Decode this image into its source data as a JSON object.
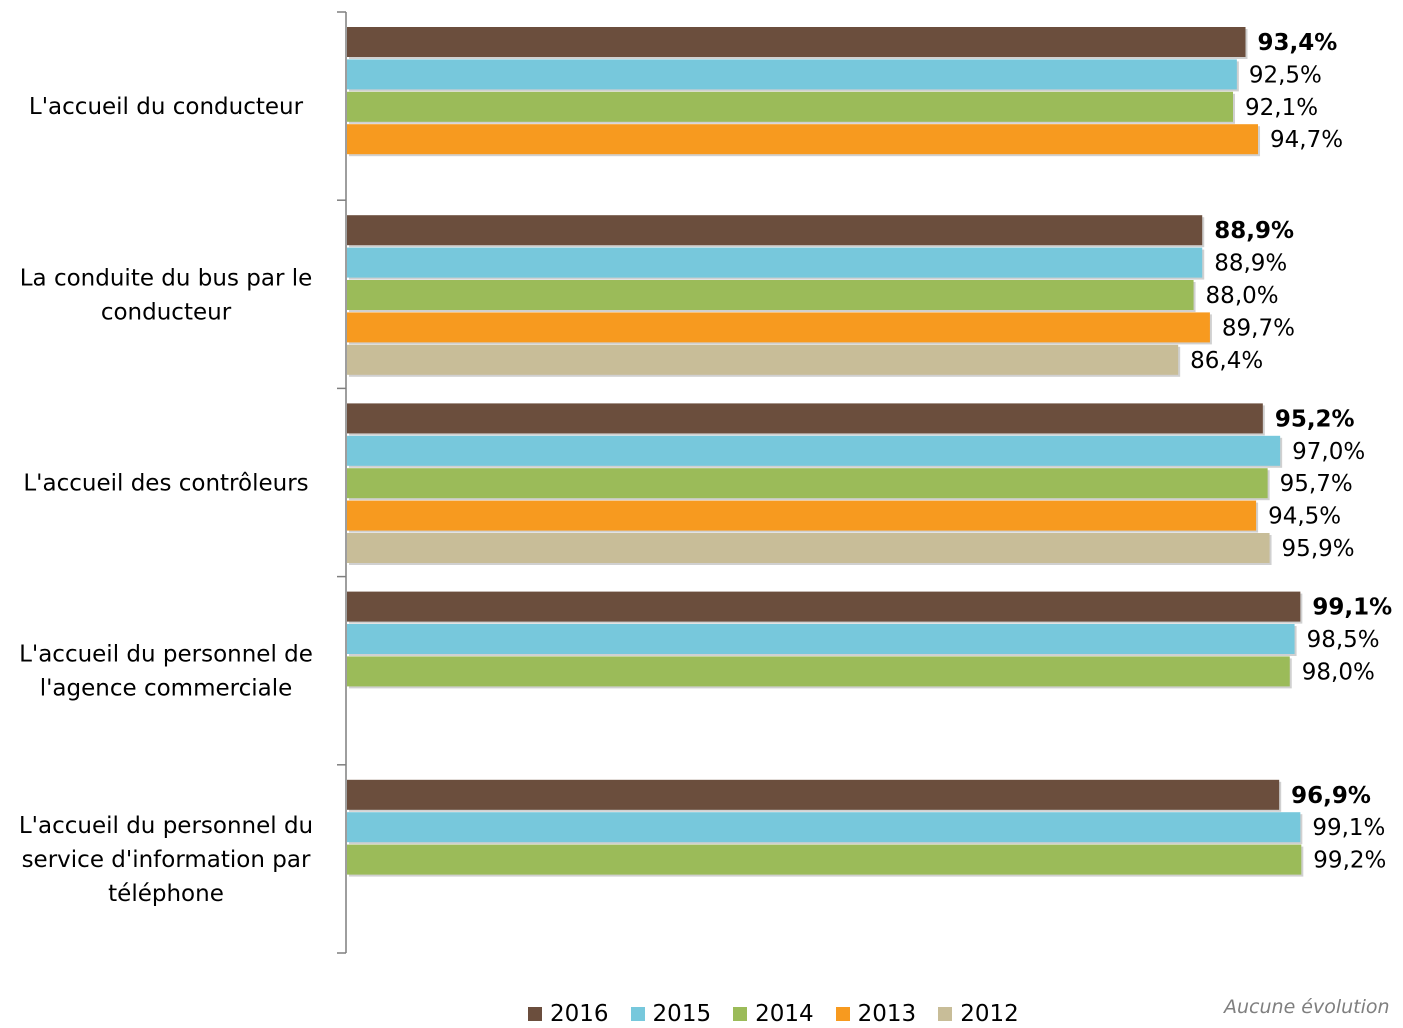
{
  "chart_data": {
    "type": "bar",
    "orientation": "horizontal",
    "categories": [
      [
        "L'accueil du conducteur"
      ],
      [
        "La conduite du bus par le",
        "conducteur"
      ],
      [
        "L'accueil des contrôleurs"
      ],
      [
        "L'accueil du personnel de",
        "l'agence commerciale"
      ],
      [
        "L'accueil du personnel du",
        "service d'information par",
        "téléphone"
      ]
    ],
    "series": [
      {
        "name": "2016",
        "color": "#6b4e3d",
        "bold_labels": true,
        "values": [
          93.4,
          88.9,
          95.2,
          99.1,
          96.9
        ],
        "labels": [
          "93,4%",
          "88,9%",
          "95,2%",
          "99,1%",
          "96,9%"
        ]
      },
      {
        "name": "2015",
        "color": "#77c8dc",
        "values": [
          92.5,
          88.9,
          97.0,
          98.5,
          99.1
        ],
        "labels": [
          "92,5%",
          "88,9%",
          "97,0%",
          "98,5%",
          "99,1%"
        ]
      },
      {
        "name": "2014",
        "color": "#9bbb59",
        "values": [
          92.1,
          88.0,
          95.7,
          98.0,
          99.2
        ],
        "labels": [
          "92,1%",
          "88,0%",
          "95,7%",
          "98,0%",
          "99,2%"
        ]
      },
      {
        "name": "2013",
        "color": "#f79a1f",
        "values": [
          94.7,
          89.7,
          94.5,
          null,
          null
        ],
        "labels": [
          "94,7%",
          "89,7%",
          "94,5%",
          "",
          ""
        ]
      },
      {
        "name": "2012",
        "color": "#c8bd98",
        "values": [
          null,
          86.4,
          95.9,
          null,
          null
        ],
        "labels": [
          "",
          "86,4%",
          "95,9%",
          "",
          ""
        ]
      }
    ],
    "title": "",
    "xlabel": "",
    "ylabel": "",
    "xlim": [
      0,
      100
    ],
    "grid": false,
    "legend": "bottom"
  },
  "note": "Aucune évolution"
}
